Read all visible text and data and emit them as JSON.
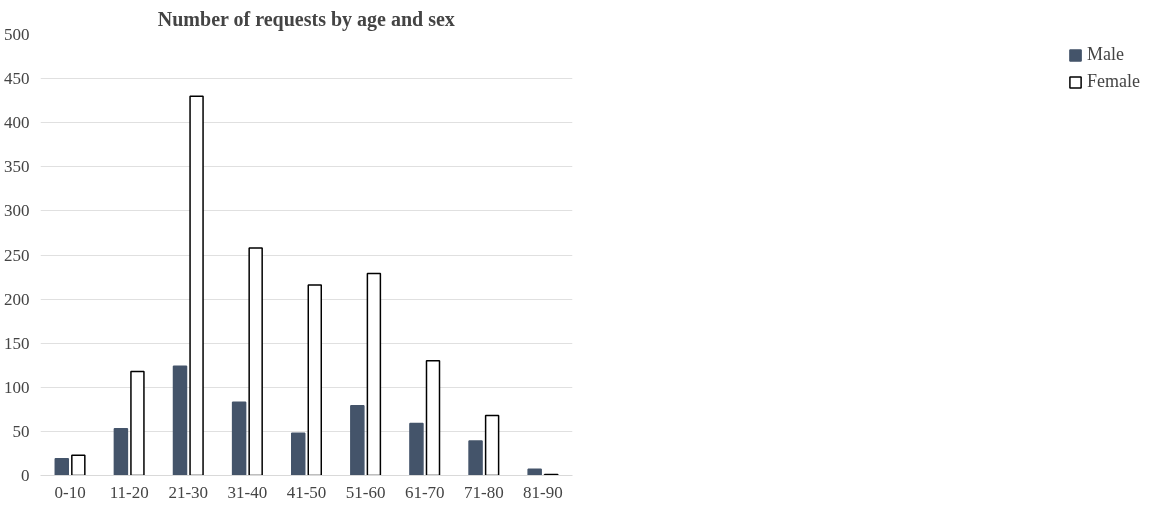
{
  "chart_data": {
    "type": "bar",
    "title": "Number of requests by age and sex",
    "categories": [
      "0-10",
      "11-20",
      "21-30",
      "31-40",
      "41-50",
      "51-60",
      "61-70",
      "71-80",
      "81-90"
    ],
    "series": [
      {
        "name": "Male",
        "color": "#44546a",
        "values": [
          19,
          53,
          124,
          83,
          48,
          79,
          59,
          39,
          7
        ]
      },
      {
        "name": "Female",
        "color": "#ffffff",
        "values": [
          23,
          118,
          430,
          258,
          216,
          229,
          130,
          68,
          1
        ]
      }
    ],
    "ylim": [
      0,
      500
    ],
    "yticks": [
      0,
      50,
      100,
      150,
      200,
      250,
      300,
      350,
      400,
      450,
      500
    ],
    "grid": "y",
    "legend": "right"
  }
}
